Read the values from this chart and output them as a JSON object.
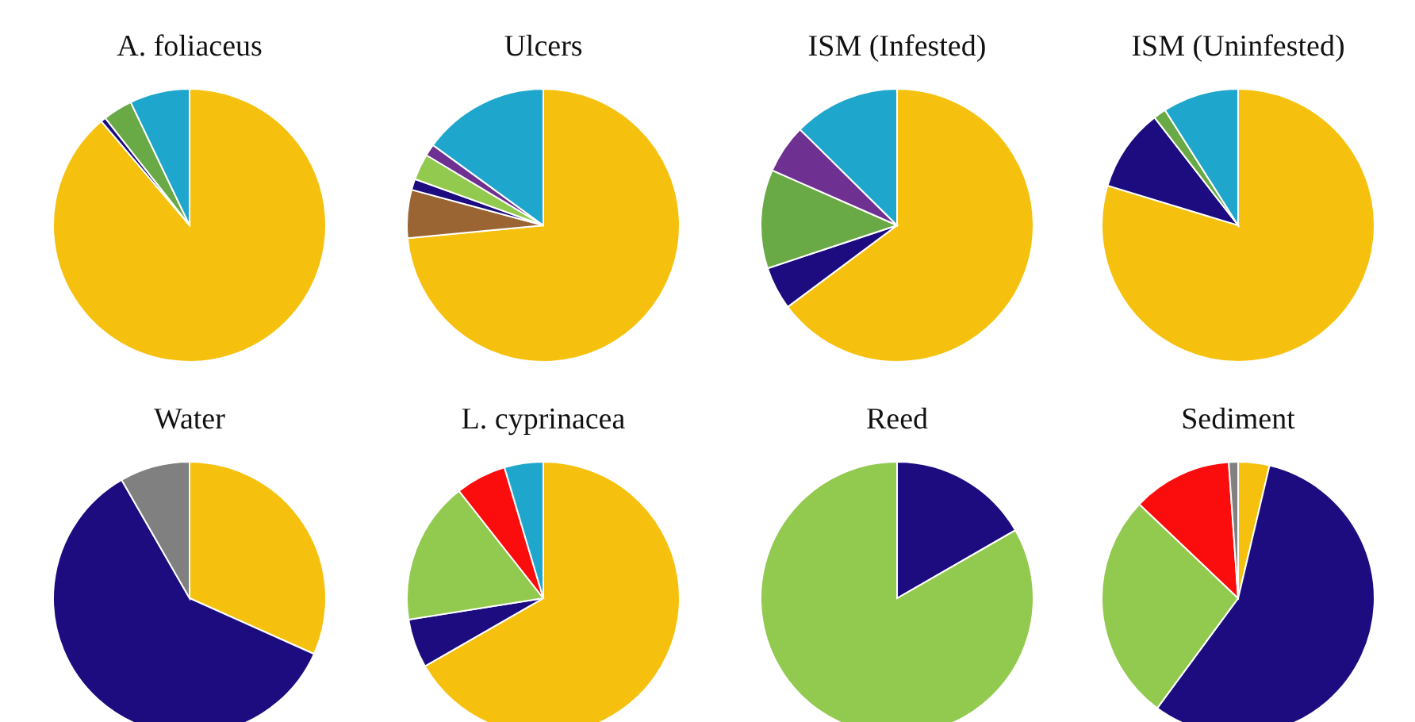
{
  "chart_data": [
    {
      "type": "pie",
      "title": "A. foliaceus",
      "categories": [
        null,
        null,
        null,
        null
      ],
      "values": [
        88.8,
        0.6,
        3.5,
        7.1
      ],
      "colors": [
        "#f6c10e",
        "#1c0c80",
        "#6aaa46",
        "#1fa6cc"
      ]
    },
    {
      "type": "pie",
      "title": "Ulcers",
      "categories": [
        null,
        null,
        null,
        null,
        null,
        null
      ],
      "values": [
        73.5,
        5.7,
        1.3,
        3.1,
        1.4,
        15.0
      ],
      "colors": [
        "#f6c10e",
        "#9a6533",
        "#1c0c80",
        "#92c94f",
        "#6f3191",
        "#1fa6cc"
      ]
    },
    {
      "type": "pie",
      "title": "ISM (Infested)",
      "categories": [
        null,
        null,
        null,
        null,
        null
      ],
      "values": [
        64.8,
        5.1,
        11.7,
        5.8,
        12.6
      ],
      "colors": [
        "#f6c10e",
        "#1c0c80",
        "#6aaa46",
        "#6f3191",
        "#1fa6cc"
      ]
    },
    {
      "type": "pie",
      "title": "ISM (Uninfested)",
      "categories": [
        null,
        null,
        null,
        null
      ],
      "values": [
        79.7,
        9.8,
        1.5,
        9.0
      ],
      "colors": [
        "#f6c10e",
        "#1c0c80",
        "#6aaa46",
        "#1fa6cc"
      ]
    },
    {
      "type": "pie",
      "title": "Water",
      "categories": [
        null,
        null,
        null
      ],
      "values": [
        31.7,
        60.0,
        8.3
      ],
      "colors": [
        "#f6c10e",
        "#1c0c80",
        "#808080"
      ]
    },
    {
      "type": "pie",
      "title": "L. cyprinacea",
      "categories": [
        null,
        null,
        null,
        null,
        null
      ],
      "values": [
        66.7,
        5.8,
        16.9,
        6.0,
        4.6
      ],
      "colors": [
        "#f6c10e",
        "#1c0c80",
        "#92c94f",
        "#fb0d0d",
        "#1fa6cc"
      ]
    },
    {
      "type": "pie",
      "title": "Reed",
      "categories": [
        null,
        null
      ],
      "values": [
        16.7,
        83.3
      ],
      "colors": [
        "#1c0c80",
        "#92c94f"
      ]
    },
    {
      "type": "pie",
      "title": "Sediment",
      "categories": [
        null,
        null,
        null,
        null,
        null
      ],
      "values": [
        3.7,
        56.4,
        27.0,
        11.8,
        1.1
      ],
      "colors": [
        "#f6c10e",
        "#1c0c80",
        "#92c94f",
        "#fb0d0d",
        "#808080"
      ]
    }
  ]
}
